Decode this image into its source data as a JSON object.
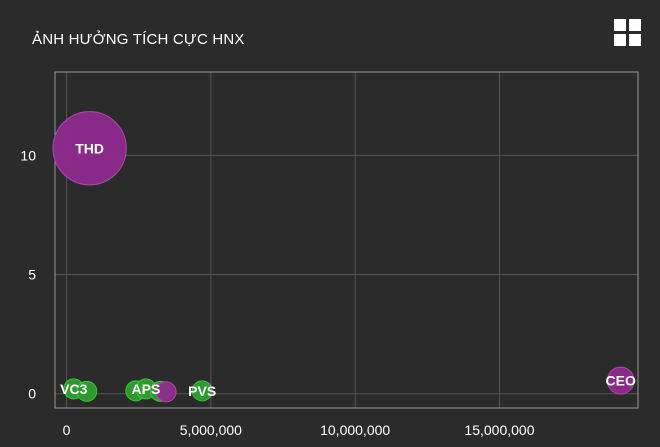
{
  "header": {
    "title": "ẢNH HƯỞNG TÍCH CỰC HNX",
    "menu_icon": "grid-menu-icon"
  },
  "colors": {
    "background": "#2b2b2b",
    "positive": "#2ca02c",
    "highlight": "#8e2a8e",
    "grid": "#555555",
    "frame": "#9a9a9a"
  },
  "chart_data": {
    "type": "scatter",
    "title": "ẢNH HƯỞNG TÍCH CỰC HNX",
    "xlabel": "",
    "ylabel": "",
    "xlim": [
      -400000,
      19800000
    ],
    "ylim": [
      -0.6,
      13.5
    ],
    "x_ticks": [
      0,
      5000000,
      10000000,
      15000000
    ],
    "x_tick_labels": [
      "0",
      "5,000,000",
      "10,000,000",
      "15,000,000"
    ],
    "y_ticks": [
      0,
      5,
      10
    ],
    "y_tick_labels": [
      "0",
      "5",
      "10"
    ],
    "grid": true,
    "points": [
      {
        "label": "THD",
        "x": 800000,
        "y": 10.3,
        "size": 12,
        "color": "#8e2a8e",
        "show_label": true
      },
      {
        "label": "VC3",
        "x": 250000,
        "y": 0.2,
        "size": 1,
        "color": "#2ca02c",
        "show_label": true
      },
      {
        "label": "",
        "x": 700000,
        "y": 0.1,
        "size": 1,
        "color": "#2ca02c",
        "show_label": false
      },
      {
        "label": "",
        "x": 2400000,
        "y": 0.12,
        "size": 1,
        "color": "#2ca02c",
        "show_label": false
      },
      {
        "label": "APS",
        "x": 2750000,
        "y": 0.2,
        "size": 1,
        "color": "#2ca02c",
        "show_label": true
      },
      {
        "label": "",
        "x": 3250000,
        "y": 0.1,
        "size": 1,
        "color": "#2ca02c",
        "show_label": false
      },
      {
        "label": "",
        "x": 3450000,
        "y": 0.08,
        "size": 1,
        "color": "#8e2a8e",
        "show_label": false
      },
      {
        "label": "PVS",
        "x": 4700000,
        "y": 0.12,
        "size": 1,
        "color": "#2ca02c",
        "show_label": true
      },
      {
        "label": "CEO",
        "x": 19200000,
        "y": 0.55,
        "size": 1.8,
        "color": "#8e2a8e",
        "show_label": true
      }
    ]
  }
}
